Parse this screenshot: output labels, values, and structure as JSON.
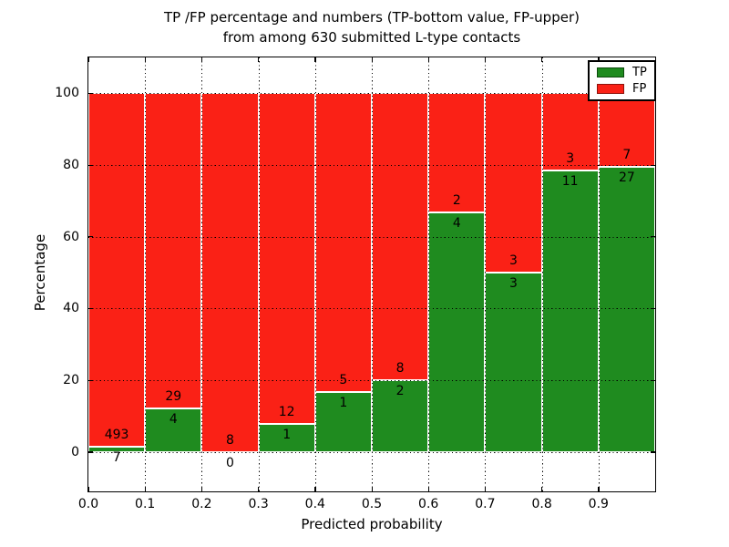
{
  "figure": {
    "title_line1": "TP /FP percentage and numbers (TP-bottom value, FP-upper)",
    "title_line2": "from among 630 submitted L-type contacts"
  },
  "axes": {
    "xlabel": "Predicted probability",
    "ylabel": "Percentage",
    "xtick_labels": [
      "0.0",
      "0.1",
      "0.2",
      "0.3",
      "0.4",
      "0.5",
      "0.6",
      "0.7",
      "0.8",
      "0.9"
    ],
    "ytick_values": [
      0,
      20,
      40,
      60,
      80,
      100
    ],
    "xlim": [
      0.0,
      1.0
    ],
    "ylim": [
      -11,
      110
    ],
    "grid_style": "dotted"
  },
  "legend": {
    "position": "upper-right",
    "items": [
      {
        "label": "TP",
        "color": "#1f8b1f",
        "edge": "#0d4a0d"
      },
      {
        "label": "FP",
        "color": "#fa2116",
        "edge": "#8f120c"
      }
    ]
  },
  "colors": {
    "tp_green": "#1f8b1f",
    "fp_red": "#fa2116",
    "bar_edge": "#ffffff",
    "grid": "#000000",
    "frame": "#000000",
    "background": "#ffffff",
    "text": "#000000"
  },
  "chart_data": {
    "type": "bar",
    "stacked": true,
    "normalized_to_percent": true,
    "title": "TP /FP percentage and numbers (TP-bottom value, FP-upper) from among 630 submitted L-type contacts",
    "xlabel": "Predicted probability",
    "ylabel": "Percentage",
    "total_contacts": 630,
    "bin_edges": [
      0.0,
      0.1,
      0.2,
      0.3,
      0.4,
      0.5,
      0.6,
      0.7,
      0.8,
      0.9,
      1.0
    ],
    "categories": [
      "0.0-0.1",
      "0.1-0.2",
      "0.2-0.3",
      "0.3-0.4",
      "0.4-0.5",
      "0.5-0.6",
      "0.6-0.7",
      "0.7-0.8",
      "0.8-0.9",
      "0.9-1.0"
    ],
    "series": [
      {
        "name": "TP",
        "color": "#1f8b1f",
        "counts": [
          7,
          4,
          0,
          1,
          1,
          2,
          4,
          3,
          11,
          27
        ]
      },
      {
        "name": "FP",
        "color": "#fa2116",
        "counts": [
          493,
          29,
          8,
          12,
          5,
          8,
          2,
          3,
          3,
          7
        ]
      }
    ],
    "tp_percent": [
      1.4,
      12.12,
      0.0,
      7.69,
      16.67,
      20.0,
      66.67,
      50.0,
      78.57,
      79.41
    ],
    "ylim": [
      -11,
      110
    ],
    "grid": true,
    "legend_position": "upper-right"
  }
}
